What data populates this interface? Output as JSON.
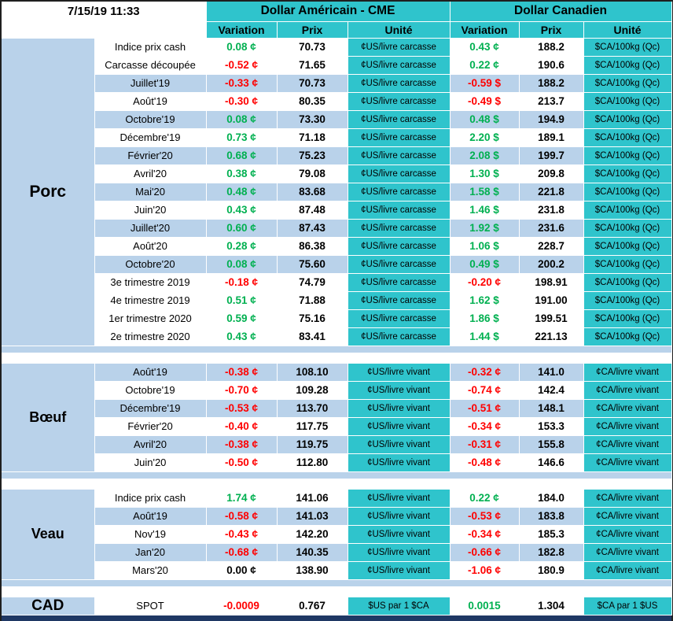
{
  "meta": {
    "timestamp": "7/15/19 11:33"
  },
  "colors": {
    "teal": "#2FC4CC",
    "blue": "#B9D2EA",
    "green": "#00B050",
    "red": "#FF0000",
    "navy": "#1F3864"
  },
  "header": {
    "us_title": "Dollar Américain - CME",
    "ca_title": "Dollar Canadien",
    "col_variation": "Variation",
    "col_prix": "Prix",
    "col_unite": "Unité"
  },
  "sections": [
    {
      "id": "porc",
      "name": "Porc",
      "us_unit": "¢US/livre carcasse",
      "ca_unit": "$CA/100kg (Qc)",
      "rows": [
        {
          "label": "Indice prix cash",
          "us_var": "0.08 ¢",
          "us_dir": "up",
          "us_prix": "70.73",
          "ca_var": "0.43 ¢",
          "ca_dir": "up",
          "ca_prix": "188.2",
          "shade": false
        },
        {
          "label": "Carcasse découpée",
          "us_var": "-0.52 ¢",
          "us_dir": "down",
          "us_prix": "71.65",
          "ca_var": "0.22 ¢",
          "ca_dir": "up",
          "ca_prix": "190.6",
          "shade": false
        },
        {
          "label": "Juillet'19",
          "us_var": "-0.33 ¢",
          "us_dir": "down",
          "us_prix": "70.73",
          "ca_var": "-0.59 $",
          "ca_dir": "down",
          "ca_prix": "188.2",
          "shade": true
        },
        {
          "label": "Août'19",
          "us_var": "-0.30 ¢",
          "us_dir": "down",
          "us_prix": "80.35",
          "ca_var": "-0.49 $",
          "ca_dir": "down",
          "ca_prix": "213.7",
          "shade": false
        },
        {
          "label": "Octobre'19",
          "us_var": "0.08 ¢",
          "us_dir": "up",
          "us_prix": "73.30",
          "ca_var": "0.48 $",
          "ca_dir": "up",
          "ca_prix": "194.9",
          "shade": true
        },
        {
          "label": "Décembre'19",
          "us_var": "0.73 ¢",
          "us_dir": "up",
          "us_prix": "71.18",
          "ca_var": "2.20 $",
          "ca_dir": "up",
          "ca_prix": "189.1",
          "shade": false
        },
        {
          "label": "Février'20",
          "us_var": "0.68 ¢",
          "us_dir": "up",
          "us_prix": "75.23",
          "ca_var": "2.08 $",
          "ca_dir": "up",
          "ca_prix": "199.7",
          "shade": true
        },
        {
          "label": "Avril'20",
          "us_var": "0.38 ¢",
          "us_dir": "up",
          "us_prix": "79.08",
          "ca_var": "1.30 $",
          "ca_dir": "up",
          "ca_prix": "209.8",
          "shade": false
        },
        {
          "label": "Mai'20",
          "us_var": "0.48 ¢",
          "us_dir": "up",
          "us_prix": "83.68",
          "ca_var": "1.58 $",
          "ca_dir": "up",
          "ca_prix": "221.8",
          "shade": true
        },
        {
          "label": "Juin'20",
          "us_var": "0.43 ¢",
          "us_dir": "up",
          "us_prix": "87.48",
          "ca_var": "1.46 $",
          "ca_dir": "up",
          "ca_prix": "231.8",
          "shade": false
        },
        {
          "label": "Juillet'20",
          "us_var": "0.60 ¢",
          "us_dir": "up",
          "us_prix": "87.43",
          "ca_var": "1.92 $",
          "ca_dir": "up",
          "ca_prix": "231.6",
          "shade": true
        },
        {
          "label": "Août'20",
          "us_var": "0.28 ¢",
          "us_dir": "up",
          "us_prix": "86.38",
          "ca_var": "1.06 $",
          "ca_dir": "up",
          "ca_prix": "228.7",
          "shade": false
        },
        {
          "label": "Octobre'20",
          "us_var": "0.08 ¢",
          "us_dir": "up",
          "us_prix": "75.60",
          "ca_var": "0.49 $",
          "ca_dir": "up",
          "ca_prix": "200.2",
          "shade": true
        },
        {
          "label": "3e trimestre 2019",
          "us_var": "-0.18 ¢",
          "us_dir": "down",
          "us_prix": "74.79",
          "ca_var": "-0.20 ¢",
          "ca_dir": "down",
          "ca_prix": "198.91",
          "shade": false
        },
        {
          "label": "4e trimestre 2019",
          "us_var": "0.51 ¢",
          "us_dir": "up",
          "us_prix": "71.88",
          "ca_var": "1.62 $",
          "ca_dir": "up",
          "ca_prix": "191.00",
          "shade": false
        },
        {
          "label": "1er trimestre 2020",
          "us_var": "0.59 ¢",
          "us_dir": "up",
          "us_prix": "75.16",
          "ca_var": "1.86 $",
          "ca_dir": "up",
          "ca_prix": "199.51",
          "shade": false
        },
        {
          "label": "2e trimestre 2020",
          "us_var": "0.43 ¢",
          "us_dir": "up",
          "us_prix": "83.41",
          "ca_var": "1.44 $",
          "ca_dir": "up",
          "ca_prix": "221.13",
          "shade": false
        }
      ]
    },
    {
      "id": "boeuf",
      "name": "Bœuf",
      "us_unit": "¢US/livre vivant",
      "ca_unit": "¢CA/livre vivant",
      "rows": [
        {
          "label": "Août'19",
          "us_var": "-0.38 ¢",
          "us_dir": "down",
          "us_prix": "108.10",
          "ca_var": "-0.32 ¢",
          "ca_dir": "down",
          "ca_prix": "141.0",
          "shade": true
        },
        {
          "label": "Octobre'19",
          "us_var": "-0.70 ¢",
          "us_dir": "down",
          "us_prix": "109.28",
          "ca_var": "-0.74 ¢",
          "ca_dir": "down",
          "ca_prix": "142.4",
          "shade": false
        },
        {
          "label": "Décembre'19",
          "us_var": "-0.53 ¢",
          "us_dir": "down",
          "us_prix": "113.70",
          "ca_var": "-0.51 ¢",
          "ca_dir": "down",
          "ca_prix": "148.1",
          "shade": true
        },
        {
          "label": "Février'20",
          "us_var": "-0.40 ¢",
          "us_dir": "down",
          "us_prix": "117.75",
          "ca_var": "-0.34 ¢",
          "ca_dir": "down",
          "ca_prix": "153.3",
          "shade": false
        },
        {
          "label": "Avril'20",
          "us_var": "-0.38 ¢",
          "us_dir": "down",
          "us_prix": "119.75",
          "ca_var": "-0.31 ¢",
          "ca_dir": "down",
          "ca_prix": "155.8",
          "shade": true
        },
        {
          "label": "Juin'20",
          "us_var": "-0.50 ¢",
          "us_dir": "down",
          "us_prix": "112.80",
          "ca_var": "-0.48 ¢",
          "ca_dir": "down",
          "ca_prix": "146.6",
          "shade": false
        }
      ]
    },
    {
      "id": "veau",
      "name": "Veau",
      "us_unit": "¢US/livre vivant",
      "ca_unit": "¢CA/livre vivant",
      "rows": [
        {
          "label": "Indice prix cash",
          "us_var": "1.74 ¢",
          "us_dir": "up",
          "us_prix": "141.06",
          "ca_var": "0.22 ¢",
          "ca_dir": "up",
          "ca_prix": "184.0",
          "shade": false
        },
        {
          "label": "Août'19",
          "us_var": "-0.58 ¢",
          "us_dir": "down",
          "us_prix": "141.03",
          "ca_var": "-0.53 ¢",
          "ca_dir": "down",
          "ca_prix": "183.8",
          "shade": true
        },
        {
          "label": "Nov'19",
          "us_var": "-0.43 ¢",
          "us_dir": "down",
          "us_prix": "142.20",
          "ca_var": "-0.34 ¢",
          "ca_dir": "down",
          "ca_prix": "185.3",
          "shade": false
        },
        {
          "label": "Jan'20",
          "us_var": "-0.68 ¢",
          "us_dir": "down",
          "us_prix": "140.35",
          "ca_var": "-0.66 ¢",
          "ca_dir": "down",
          "ca_prix": "182.8",
          "shade": true
        },
        {
          "label": "Mars'20",
          "us_var": "0.00 ¢",
          "us_dir": "flat",
          "us_prix": "138.90",
          "ca_var": "-1.06 ¢",
          "ca_dir": "down",
          "ca_prix": "180.9",
          "shade": false
        }
      ]
    },
    {
      "id": "cad",
      "name": "CAD",
      "us_unit": "$US par 1 $CA",
      "ca_unit": "$CA par 1 $US",
      "rows": [
        {
          "label": "SPOT",
          "us_var": "-0.0009",
          "us_dir": "down",
          "us_prix": "0.767",
          "ca_var": "0.0015",
          "ca_dir": "up",
          "ca_prix": "1.304",
          "shade": false
        }
      ]
    }
  ]
}
